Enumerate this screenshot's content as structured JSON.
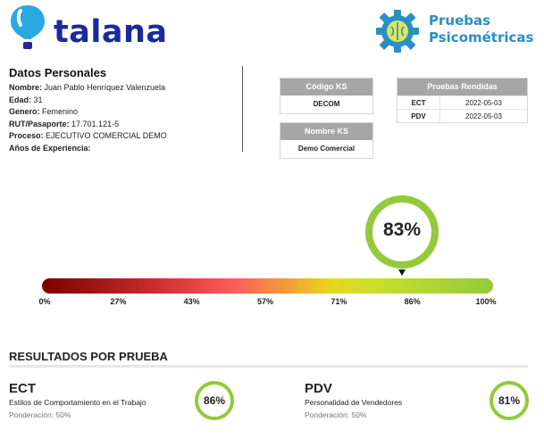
{
  "brand": {
    "logo_text": "talana",
    "title_line1": "Pruebas",
    "title_line2": "Psicométricas",
    "accent": "#1a2a9a"
  },
  "personal": {
    "heading": "Datos Personales",
    "fields": [
      {
        "label": "Nombre:",
        "value": "Juan Pablo Henríquez Valenzuela"
      },
      {
        "label": "Edad:",
        "value": "31"
      },
      {
        "label": "Genero:",
        "value": "Femenino"
      },
      {
        "label": "RUT/Pasaporte:",
        "value": "17.701.121-5"
      },
      {
        "label": "Proceso:",
        "value": "EJECUTIVO COMERCIAL DEMO"
      },
      {
        "label": "Años de Experiencia:",
        "value": ""
      }
    ]
  },
  "ks": {
    "codigo_label": "Código KS",
    "codigo_value": "DECOM",
    "nombre_label": "Nombre KS",
    "nombre_value": "Demo Comercial"
  },
  "tests_taken": {
    "heading": "Pruebas Rendidas",
    "rows": [
      {
        "code": "ECT",
        "date": "2022-05-03"
      },
      {
        "code": "PDV",
        "date": "2022-05-03"
      }
    ]
  },
  "overall": {
    "score": 83,
    "score_label": "83%",
    "gauge_color": "#94c93a"
  },
  "scale": {
    "ticks": [
      "0%",
      "27%",
      "43%",
      "57%",
      "71%",
      "86%",
      "100%"
    ]
  },
  "results": {
    "heading": "RESULTADOS POR PRUEBA",
    "items": [
      {
        "code": "ECT",
        "description": "Estilos de Comportamiento en el Trabajo",
        "weight": "Ponderación: 50%",
        "score_label": "86%"
      },
      {
        "code": "PDV",
        "description": "Personalidad de Vendedores",
        "weight": "Ponderación: 50%",
        "score_label": "81%"
      }
    ]
  }
}
